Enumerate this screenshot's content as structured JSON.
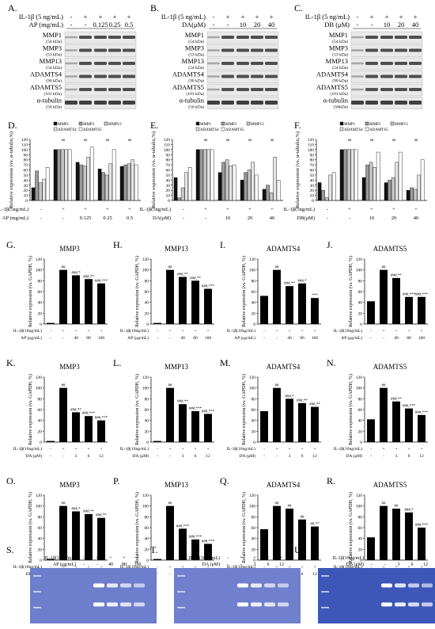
{
  "panels_wb": [
    {
      "letter": "A.",
      "treat_rows": [
        {
          "label": "IL-1β (5 ng/mL)",
          "vals": [
            "-",
            "+",
            "+",
            "+",
            "+"
          ]
        },
        {
          "label": "AP (mg/mL)",
          "vals": [
            "-",
            "-",
            "0.125",
            "0.25",
            "0.5"
          ]
        }
      ],
      "proteins": [
        [
          "MMP1",
          "(54 kDa)"
        ],
        [
          "MMP3",
          "(53 kDa)"
        ],
        [
          "MMP13",
          "(54 kDa)"
        ],
        [
          "ADAMTS4",
          "(90 kDa)"
        ],
        [
          "ADAMTS5",
          "(101 kDa)"
        ],
        [
          "α-tubulin",
          "(56 kDa)"
        ]
      ]
    },
    {
      "letter": "B.",
      "treat_rows": [
        {
          "label": "IL-1β (5 ng/mL)",
          "vals": [
            "-",
            "+",
            "+",
            "+",
            "+"
          ]
        },
        {
          "label": "DA(μM)",
          "vals": [
            "-",
            "-",
            "10",
            "20",
            "40"
          ]
        }
      ],
      "proteins": [
        [
          "MMP1",
          "(54 kDa)"
        ],
        [
          "MMP3",
          "(53 kDa)"
        ],
        [
          "MMP13",
          "(54 kDa)"
        ],
        [
          "ADAMTS4",
          "(90 kDa)"
        ],
        [
          "ADAMTS5",
          "(101 kDa)"
        ],
        [
          "α-tubulin",
          "(56 kDa)"
        ]
      ]
    },
    {
      "letter": "C.",
      "treat_rows": [
        {
          "label": "IL-1β (5 ng/mL)",
          "vals": [
            "-",
            "+",
            "+",
            "+",
            "+"
          ]
        },
        {
          "label": "DB (μM)",
          "vals": [
            "-",
            "-",
            "10",
            "20",
            "40"
          ]
        }
      ],
      "proteins": [
        [
          "MMP1",
          "(54 kDa)"
        ],
        [
          "MMP3",
          "(53 kDa)"
        ],
        [
          "MMP13",
          "(54 kDa)"
        ],
        [
          "ADAMTS4",
          "(90 kDa)"
        ],
        [
          "ADAMTS5",
          "(101 kDa)"
        ],
        [
          "α-tubulin",
          "(56kDa)"
        ]
      ]
    }
  ],
  "legend_items": [
    "MMP1",
    "MMP3",
    "MMP13",
    "ADAMTS4",
    "ADAMTS5"
  ],
  "chart_data": [
    {
      "letter": "D.",
      "type": "bar",
      "ylabel": "Relative expression (vs. α-tubulin,%)",
      "ylim": [
        0,
        120
      ],
      "yticks": [
        0,
        10,
        20,
        30,
        40,
        50,
        60,
        70,
        80,
        90,
        100,
        110,
        120
      ],
      "treat_rows": [
        {
          "label": "IL-1β(5ng/mL)",
          "vals": [
            "-",
            "+",
            "+",
            "+",
            "+"
          ]
        },
        {
          "label": "AP (mg/mL)",
          "vals": [
            "-",
            "-",
            "0.125",
            "0.25",
            "0.5"
          ]
        }
      ],
      "series": [
        {
          "name": "MMP1",
          "values": [
            25,
            100,
            75,
            62,
            67
          ]
        },
        {
          "name": "MMP3",
          "values": [
            58,
            100,
            70,
            55,
            70
          ]
        },
        {
          "name": "MMP13",
          "values": [
            35,
            100,
            68,
            50,
            72
          ]
        },
        {
          "name": "ADAMTS4",
          "values": [
            42,
            100,
            85,
            72,
            80
          ]
        },
        {
          "name": "ADAMTS5",
          "values": [
            65,
            100,
            105,
            100,
            70
          ]
        }
      ]
    },
    {
      "letter": "E.",
      "type": "bar",
      "ylabel": "Relative expression (vs. α-tubulin,%)",
      "ylim": [
        0,
        120
      ],
      "yticks": [
        0,
        10,
        20,
        30,
        40,
        50,
        60,
        70,
        80,
        90,
        100,
        110,
        120
      ],
      "treat_rows": [
        {
          "label": "IL-1β(5ng/mL)",
          "vals": [
            "-",
            "+",
            "+",
            "+",
            "+"
          ]
        },
        {
          "label": "DA(μM)",
          "vals": [
            "-",
            "-",
            "10",
            "20",
            "40"
          ]
        }
      ],
      "series": [
        {
          "name": "MMP1",
          "values": [
            45,
            100,
            55,
            40,
            22
          ]
        },
        {
          "name": "MMP3",
          "values": [
            5,
            100,
            75,
            55,
            30
          ]
        },
        {
          "name": "MMP13",
          "values": [
            25,
            100,
            80,
            60,
            15
          ]
        },
        {
          "name": "ADAMTS4",
          "values": [
            55,
            100,
            68,
            75,
            85
          ]
        },
        {
          "name": "ADAMTS5",
          "values": [
            65,
            100,
            70,
            50,
            40
          ]
        }
      ]
    },
    {
      "letter": "F.",
      "type": "bar",
      "ylabel": "Relative expression (vs. α-tubulin,%)",
      "ylim": [
        0,
        120
      ],
      "yticks": [
        0,
        10,
        20,
        30,
        40,
        50,
        60,
        70,
        80,
        90,
        100,
        110,
        120
      ],
      "treat_rows": [
        {
          "label": "IL-1β(5ng/mL)",
          "vals": [
            "-",
            "+",
            "+",
            "+",
            "+"
          ]
        },
        {
          "label": "DB(μM)",
          "vals": [
            "-",
            "-",
            "10",
            "20",
            "40"
          ]
        }
      ],
      "series": [
        {
          "name": "MMP1",
          "values": [
            35,
            100,
            45,
            35,
            20
          ]
        },
        {
          "name": "MMP3",
          "values": [
            20,
            100,
            70,
            40,
            25
          ]
        },
        {
          "name": "MMP13",
          "values": [
            5,
            100,
            75,
            45,
            22
          ]
        },
        {
          "name": "ADAMTS4",
          "values": [
            50,
            100,
            65,
            75,
            50
          ]
        },
        {
          "name": "ADAMTS5",
          "values": [
            55,
            100,
            95,
            95,
            80
          ]
        }
      ]
    },
    {
      "letter": "G.",
      "type": "bar",
      "title": "MMP3",
      "ylim": [
        0,
        120
      ],
      "ylabel": "Relative expression (vs. GAPDH, %)",
      "treat_label": "AP (μg/mL)",
      "il_label": "IL-1β(10ng/mL)",
      "il": [
        "-",
        "+",
        "+",
        "+",
        "+"
      ],
      "doses": [
        "-",
        "-",
        "40",
        "80",
        "160"
      ],
      "values": [
        2,
        100,
        90,
        83,
        75
      ],
      "ann": [
        "",
        "##",
        "###,*",
        "###,**",
        "###,***"
      ]
    },
    {
      "letter": "H.",
      "type": "bar",
      "title": "MMP13",
      "ylim": [
        0,
        120
      ],
      "ylabel": "Relative expression (vs. GAPDH, %)",
      "treat_label": "AP (μg/mL)",
      "il_label": "IL-1β(10ng/mL)",
      "il": [
        "-",
        "+",
        "+",
        "+",
        "+"
      ],
      "doses": [
        "-",
        "-",
        "40",
        "80",
        "160"
      ],
      "values": [
        2,
        100,
        87,
        80,
        65
      ],
      "ann": [
        "",
        "##",
        "###,**",
        "###,**",
        "###,***"
      ]
    },
    {
      "letter": "I.",
      "type": "bar",
      "title": "ADAMTS4",
      "ylim": [
        0,
        120
      ],
      "ylabel": "Relative expression (vs. GAPDH, %)",
      "treat_label": "AP (μg/mL)",
      "il_label": "IL-1β(10ng/mL)",
      "il": [
        "-",
        "+",
        "+",
        "+",
        "+"
      ],
      "doses": [
        "-",
        "-",
        "40",
        "80",
        "160"
      ],
      "values": [
        52,
        100,
        70,
        75,
        48
      ],
      "ann": [
        "",
        "##",
        "###,**",
        "###,*",
        "***"
      ]
    },
    {
      "letter": "J.",
      "type": "bar",
      "title": "ADAMTS5",
      "ylim": [
        0,
        120
      ],
      "ylabel": "Relative expression (vs. GAPDH, %)",
      "treat_label": "AP (μg/mL)",
      "il_label": "IL-1β(10ng/mL)",
      "il": [
        "-",
        "+",
        "+",
        "+",
        "+"
      ],
      "doses": [
        "-",
        "-",
        "40",
        "80",
        "160"
      ],
      "values": [
        42,
        100,
        85,
        50,
        50
      ],
      "ann": [
        "",
        "##",
        "###,**",
        "###,***",
        "###,***"
      ]
    },
    {
      "letter": "K.",
      "type": "bar",
      "title": "MMP3",
      "ylim": [
        0,
        120
      ],
      "ylabel": "Relative expression (vs. GAPDH, %)",
      "treat_label": "DA (μM)",
      "il_label": "IL-1β(10ng/mL)",
      "il": [
        "-",
        "+",
        "+",
        "+",
        "+"
      ],
      "doses": [
        "-",
        "-",
        "3",
        "6",
        "12"
      ],
      "values": [
        2,
        100,
        55,
        48,
        40
      ],
      "ann": [
        "",
        "##",
        "###,**",
        "###,***",
        "###,***"
      ]
    },
    {
      "letter": "L.",
      "type": "bar",
      "title": "MMP13",
      "ylim": [
        0,
        120
      ],
      "ylabel": "Relative expression (vs. GAPDH, %)",
      "treat_label": "DA (μM)",
      "il_label": "IL-1β(10ng/mL)",
      "il": [
        "-",
        "+",
        "+",
        "+",
        "+"
      ],
      "doses": [
        "-",
        "-",
        "3",
        "6",
        "12"
      ],
      "values": [
        2,
        100,
        70,
        57,
        52
      ],
      "ann": [
        "",
        "##",
        "###,**",
        "###,***",
        "###,***"
      ]
    },
    {
      "letter": "M.",
      "type": "bar",
      "title": "ADAMTS4",
      "ylim": [
        0,
        120
      ],
      "ylabel": "Relative expression (vs. GAPDH, %)",
      "treat_label": "DA (μM)",
      "il_label": "IL-1β(10ng/mL)",
      "il": [
        "-",
        "+",
        "+",
        "+",
        "+"
      ],
      "doses": [
        "-",
        "-",
        "3",
        "6",
        "12"
      ],
      "values": [
        57,
        100,
        80,
        72,
        65
      ],
      "ann": [
        "",
        "##",
        "###,*",
        "###,**",
        "###,**"
      ]
    },
    {
      "letter": "N.",
      "type": "bar",
      "title": "ADAMTS5",
      "ylim": [
        0,
        120
      ],
      "ylabel": "Relative expression (vs. GAPDH, %)",
      "treat_label": "DA (μM)",
      "il_label": "IL-1β(10ng/mL)",
      "il": [
        "-",
        "+",
        "+",
        "+",
        "+"
      ],
      "doses": [
        "-",
        "-",
        "3",
        "6",
        "12"
      ],
      "values": [
        42,
        100,
        75,
        62,
        50
      ],
      "ann": [
        "",
        "##",
        "###,**",
        "###,***",
        "###,***"
      ]
    },
    {
      "letter": "O.",
      "type": "bar",
      "title": "MMP3",
      "ylim": [
        0,
        120
      ],
      "ylabel": "Relative expression (vs. GAPDH, %)",
      "treat_label": "DB (μM)",
      "il_label": "IL-1β(10ng/mL)",
      "il": [
        "-",
        "+",
        "+",
        "+",
        "+"
      ],
      "doses": [
        "-",
        "-",
        "3",
        "6",
        "12"
      ],
      "values": [
        2,
        100,
        90,
        85,
        78
      ],
      "ann": [
        "",
        "##",
        "###,*",
        "###,**",
        "###,**"
      ]
    },
    {
      "letter": "P.",
      "type": "bar",
      "title": "MMP13",
      "ylim": [
        0,
        120
      ],
      "ylabel": "Relative expression (vs. GAPDH, %)",
      "treat_label": "DB (μM)",
      "il_label": "IL-1β(10ng/mL)",
      "il": [
        "-",
        "+",
        "+",
        "+",
        "+"
      ],
      "doses": [
        "-",
        "-",
        "3",
        "6",
        "12"
      ],
      "values": [
        2,
        100,
        58,
        38,
        30
      ],
      "ann": [
        "",
        "##",
        "###,***",
        "###,***",
        "###,***"
      ]
    },
    {
      "letter": "Q.",
      "type": "bar",
      "title": "ADAMTS4",
      "ylim": [
        0,
        120
      ],
      "ylabel": "Relative expression (vs. GAPDH, %)",
      "treat_label": "DB (μM)",
      "il_label": "IL-1β(10ng/mL)",
      "il": [
        "-",
        "+",
        "+",
        "+",
        "+"
      ],
      "doses": [
        "-",
        "-",
        "3",
        "6",
        "12"
      ],
      "values": [
        57,
        100,
        95,
        75,
        62
      ],
      "ann": [
        "",
        "##",
        "##",
        "##",
        "##,**"
      ]
    },
    {
      "letter": "R.",
      "type": "bar",
      "title": "ADAMTS5",
      "ylim": [
        0,
        120
      ],
      "ylabel": "Relative expression (vs. GAPDH, %)",
      "treat_label": "DB (μM)",
      "il_label": "IL-1β(10ng/mL)",
      "il": [
        "-",
        "+",
        "+",
        "+",
        "+"
      ],
      "doses": [
        "-",
        "-",
        "3",
        "6",
        "12"
      ],
      "values": [
        42,
        100,
        95,
        88,
        60
      ],
      "ann": [
        "",
        "##",
        "##",
        "###,*",
        "###,***"
      ]
    }
  ],
  "zymo": [
    {
      "letter": "S.",
      "il_label": "IL-1β(10ng/mL)",
      "il": [
        "-",
        "+",
        "+",
        "+",
        "+"
      ],
      "treat_label": "AP (μg/mL)",
      "doses": [
        "-",
        "-",
        "40",
        "80",
        "160"
      ],
      "bg": "#6c7ecc"
    },
    {
      "letter": "T.",
      "il_label": "IL-1β(10ng/mL)",
      "il": [
        "-",
        "+",
        "+",
        "+",
        "+"
      ],
      "treat_label": "DA (μM)",
      "doses": [
        "-",
        "-",
        "3",
        "6",
        "12"
      ],
      "bg": "#7080ce"
    },
    {
      "letter": "U.",
      "il_label": "IL-1β(10ng/mL)",
      "il": [
        "-",
        "+",
        "+",
        "+",
        "+"
      ],
      "treat_label": "DB (μM)",
      "doses": [
        "-",
        "-",
        "3",
        "6",
        "12"
      ],
      "bg": "#3d56b8"
    }
  ]
}
